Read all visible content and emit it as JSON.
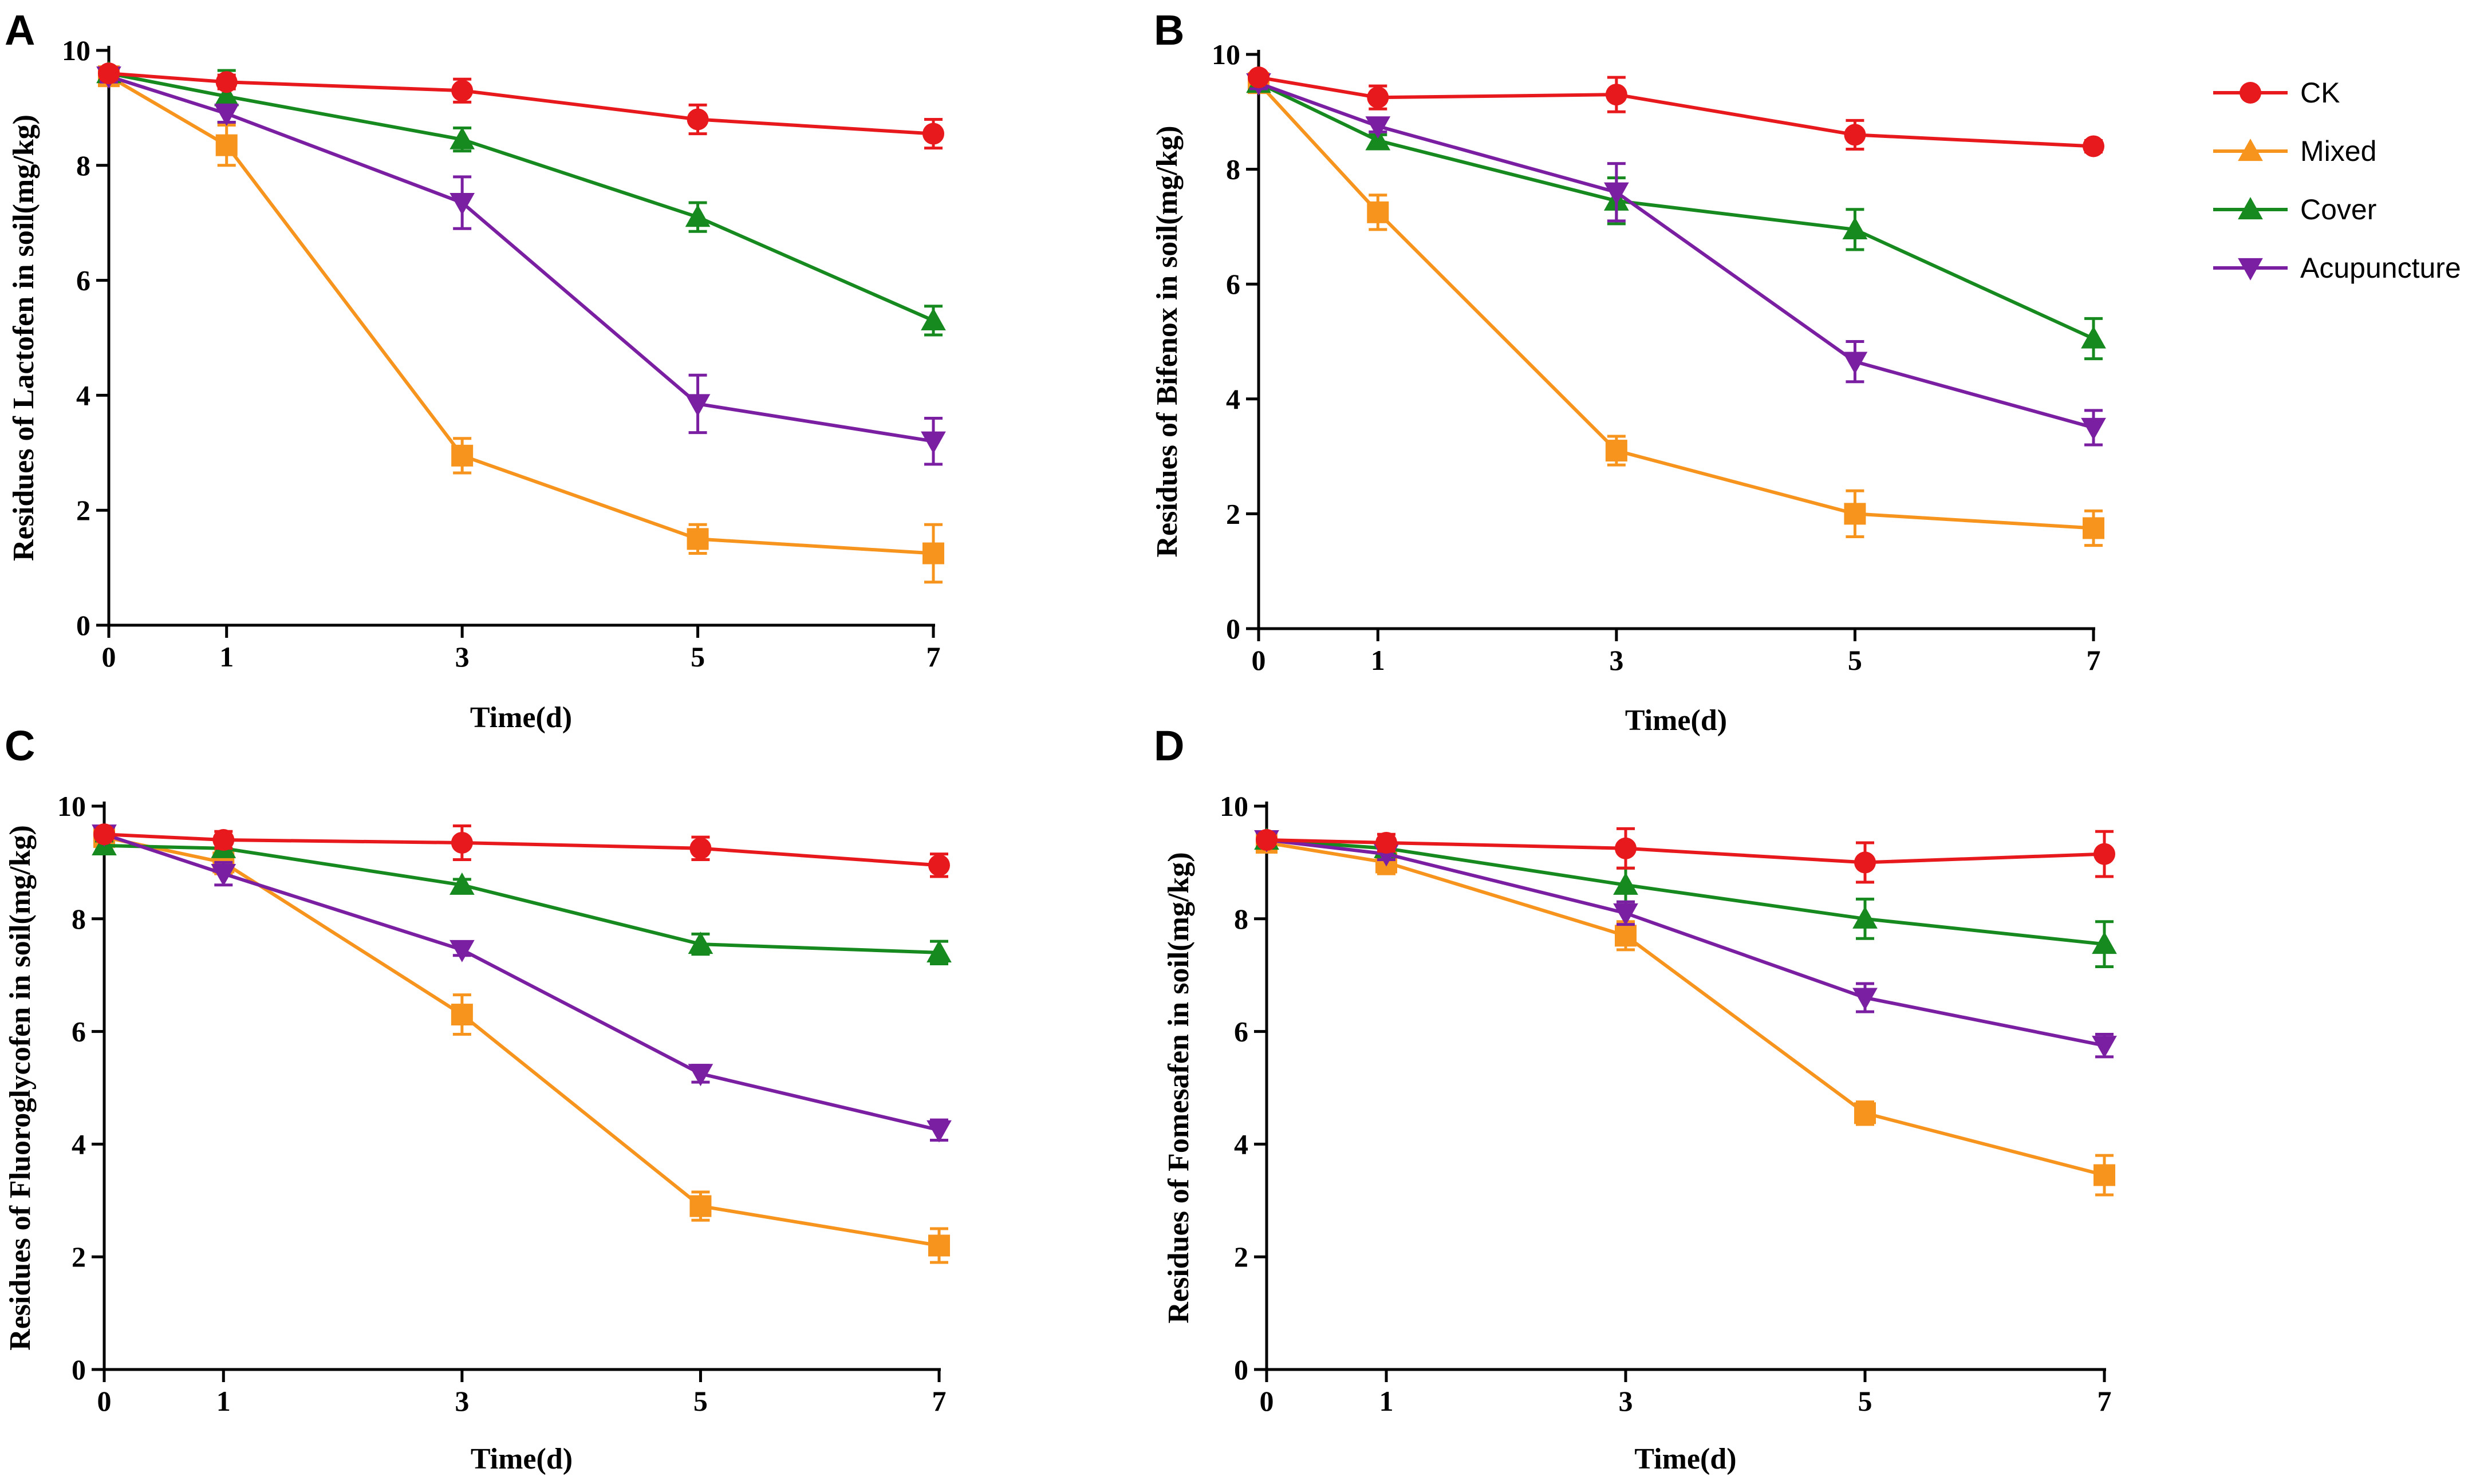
{
  "legend": [
    {
      "name": "CK",
      "color": "#e8191c",
      "marker": "circle"
    },
    {
      "name": "Mixed",
      "color": "#f7941d",
      "marker": "triangle-up"
    },
    {
      "name": "Cover",
      "color": "#16891f",
      "marker": "triangle-up"
    },
    {
      "name": "Acupuncture",
      "color": "#7b1fa2",
      "marker": "triangle-down"
    }
  ],
  "chart_data": [
    {
      "panel": "A",
      "type": "line",
      "title": "",
      "xlabel": "Time(d)",
      "ylabel": "Residues of Lactofen in soil(mg/kg)",
      "categories": [
        "0",
        "1",
        "3",
        "5",
        "7"
      ],
      "ylim": [
        0,
        10
      ],
      "yticks": [
        "0",
        "2",
        "4",
        "6",
        "8",
        "10"
      ],
      "series": [
        {
          "name": "CK",
          "color": "#e8191c",
          "marker": "circle",
          "values": [
            9.6,
            9.45,
            9.3,
            8.8,
            8.55
          ],
          "errors": [
            0.1,
            0.12,
            0.2,
            0.25,
            0.25
          ]
        },
        {
          "name": "Mixed",
          "color": "#f7941d",
          "marker": "square",
          "values": [
            9.55,
            8.35,
            2.95,
            1.5,
            1.25
          ],
          "errors": [
            0.1,
            0.35,
            0.3,
            0.25,
            0.5
          ]
        },
        {
          "name": "Cover",
          "color": "#16891f",
          "marker": "triangle-up",
          "values": [
            9.6,
            9.2,
            8.45,
            7.1,
            5.3
          ],
          "errors": [
            0.08,
            0.45,
            0.2,
            0.25,
            0.25
          ]
        },
        {
          "name": "Acupuncture",
          "color": "#7b1fa2",
          "marker": "triangle-down",
          "values": [
            9.55,
            8.9,
            7.35,
            3.85,
            3.2
          ],
          "errors": [
            0.1,
            0.15,
            0.45,
            0.5,
            0.4
          ]
        }
      ]
    },
    {
      "panel": "B",
      "type": "line",
      "title": "",
      "xlabel": "Time(d)",
      "ylabel": "Residues of Bifenox in soil(mg/kg)",
      "categories": [
        "0",
        "1",
        "3",
        "5",
        "7"
      ],
      "ylim": [
        0,
        10
      ],
      "yticks": [
        "0",
        "2",
        "4",
        "6",
        "8",
        "10"
      ],
      "series": [
        {
          "name": "CK",
          "color": "#e8191c",
          "marker": "circle",
          "values": [
            9.6,
            9.25,
            9.3,
            8.6,
            8.4
          ],
          "errors": [
            0.08,
            0.2,
            0.3,
            0.25,
            0.1
          ]
        },
        {
          "name": "Mixed",
          "color": "#f7941d",
          "marker": "square",
          "values": [
            9.5,
            7.25,
            3.1,
            2.0,
            1.75
          ],
          "errors": [
            0.1,
            0.3,
            0.25,
            0.4,
            0.3
          ]
        },
        {
          "name": "Cover",
          "color": "#16891f",
          "marker": "triangle-up",
          "values": [
            9.5,
            8.5,
            7.45,
            6.95,
            5.05
          ],
          "errors": [
            0.1,
            0.1,
            0.4,
            0.35,
            0.35
          ]
        },
        {
          "name": "Acupuncture",
          "color": "#7b1fa2",
          "marker": "triangle-down",
          "values": [
            9.5,
            8.75,
            7.6,
            4.65,
            3.5
          ],
          "errors": [
            0.1,
            0.1,
            0.5,
            0.35,
            0.3
          ]
        }
      ]
    },
    {
      "panel": "C",
      "type": "line",
      "title": "",
      "xlabel": "Time(d)",
      "ylabel": "Residues of Fluoroglycofen in soil(mg/kg)",
      "categories": [
        "0",
        "1",
        "3",
        "5",
        "7"
      ],
      "ylim": [
        0,
        10
      ],
      "yticks": [
        "0",
        "2",
        "4",
        "6",
        "8",
        "10"
      ],
      "series": [
        {
          "name": "CK",
          "color": "#e8191c",
          "marker": "circle",
          "values": [
            9.5,
            9.4,
            9.35,
            9.25,
            8.95
          ],
          "errors": [
            0.08,
            0.15,
            0.3,
            0.2,
            0.2
          ]
        },
        {
          "name": "Mixed",
          "color": "#f7941d",
          "marker": "square",
          "values": [
            9.45,
            9.0,
            6.3,
            2.9,
            2.2
          ],
          "errors": [
            0.1,
            0.2,
            0.35,
            0.25,
            0.3
          ]
        },
        {
          "name": "Cover",
          "color": "#16891f",
          "marker": "triangle-up",
          "values": [
            9.3,
            9.25,
            8.6,
            7.55,
            7.4
          ],
          "errors": [
            0.08,
            0.1,
            0.1,
            0.18,
            0.2
          ]
        },
        {
          "name": "Acupuncture",
          "color": "#7b1fa2",
          "marker": "triangle-down",
          "values": [
            9.5,
            8.8,
            7.45,
            5.25,
            4.25
          ],
          "errors": [
            0.08,
            0.2,
            0.1,
            0.15,
            0.18
          ]
        }
      ]
    },
    {
      "panel": "D",
      "type": "line",
      "title": "",
      "xlabel": "Time(d)",
      "ylabel": "Residues of Fomesafen in soil(mg/kg)",
      "categories": [
        "0",
        "1",
        "3",
        "5",
        "7"
      ],
      "ylim": [
        0,
        10
      ],
      "yticks": [
        "0",
        "2",
        "4",
        "6",
        "8",
        "10"
      ],
      "series": [
        {
          "name": "CK",
          "color": "#e8191c",
          "marker": "circle",
          "values": [
            9.4,
            9.35,
            9.25,
            9.0,
            9.15
          ],
          "errors": [
            0.08,
            0.15,
            0.35,
            0.35,
            0.4
          ]
        },
        {
          "name": "Mixed",
          "color": "#f7941d",
          "marker": "square",
          "values": [
            9.35,
            9.0,
            7.7,
            4.55,
            3.45
          ],
          "errors": [
            0.08,
            0.2,
            0.25,
            0.2,
            0.35
          ]
        },
        {
          "name": "Cover",
          "color": "#16891f",
          "marker": "triangle-up",
          "values": [
            9.4,
            9.25,
            8.6,
            8.0,
            7.55
          ],
          "errors": [
            0.08,
            0.1,
            0.3,
            0.35,
            0.4
          ]
        },
        {
          "name": "Acupuncture",
          "color": "#7b1fa2",
          "marker": "triangle-down",
          "values": [
            9.4,
            9.15,
            8.1,
            6.6,
            5.75
          ],
          "errors": [
            0.08,
            0.1,
            0.2,
            0.25,
            0.2
          ]
        }
      ]
    }
  ]
}
